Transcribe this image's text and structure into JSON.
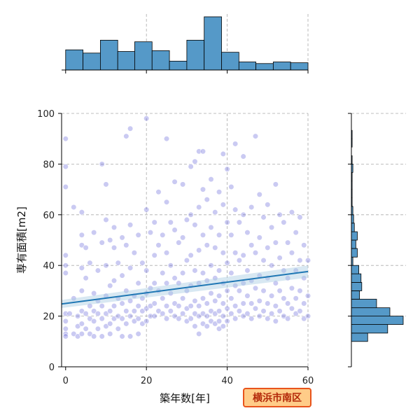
{
  "chart_data": {
    "type": "scatter",
    "title": "",
    "xlabel": "築年数[年]",
    "ylabel": "専有面積[m2]",
    "xlim": [
      -1,
      60
    ],
    "ylim": [
      0,
      100
    ],
    "x_ticks": [
      0,
      20,
      40,
      60
    ],
    "y_ticks": [
      0,
      20,
      40,
      60,
      80,
      100
    ],
    "grid": true,
    "badge": "横浜市南区",
    "colors": {
      "point": "#5b5bd6",
      "regression": "#1f77b4",
      "ci_band": "#a9cce3",
      "histogram": "#5599c8",
      "badge_fill": "#ffcc88",
      "badge_border": "#e8541c"
    },
    "regression": {
      "intercept": 25.0,
      "slope": 0.21,
      "ci_halfwidth_start": 1.6,
      "ci_halfwidth_end": 2.4
    },
    "x_histogram": {
      "bin_edges": [
        0,
        4.3,
        8.6,
        12.9,
        17.1,
        21.4,
        25.7,
        30,
        34.3,
        38.6,
        42.9,
        47.1,
        51.4,
        55.7,
        60
      ],
      "counts": [
        25,
        21,
        37,
        23,
        35,
        24,
        11,
        37,
        66,
        22,
        10,
        8,
        10,
        9
      ]
    },
    "y_histogram": {
      "bin_edges": [
        10,
        13.3,
        16.7,
        20,
        23.3,
        26.7,
        30,
        33.3,
        36.7,
        40,
        43.3,
        46.7,
        50,
        53.3,
        56.7,
        60,
        63.3,
        66.7,
        70,
        73.3,
        76.7,
        80,
        83.3,
        86.7,
        90,
        93.3
      ],
      "counts": [
        22,
        49,
        70,
        52,
        34,
        11,
        14,
        13,
        10,
        2,
        8,
        6,
        8,
        4,
        3,
        2,
        1,
        1,
        1,
        1,
        2,
        1,
        0,
        1,
        1
      ]
    },
    "points": [
      [
        0,
        90
      ],
      [
        0,
        79
      ],
      [
        0,
        71
      ],
      [
        0,
        44
      ],
      [
        0,
        40
      ],
      [
        0,
        37
      ],
      [
        0,
        21
      ],
      [
        0,
        18
      ],
      [
        0,
        15
      ],
      [
        0,
        13
      ],
      [
        0,
        12
      ],
      [
        1,
        21
      ],
      [
        2,
        63
      ],
      [
        2,
        27
      ],
      [
        2,
        13
      ],
      [
        3,
        20
      ],
      [
        3,
        16
      ],
      [
        3,
        12
      ],
      [
        4,
        61
      ],
      [
        4,
        52
      ],
      [
        4,
        48
      ],
      [
        4,
        39
      ],
      [
        4,
        30
      ],
      [
        4,
        22
      ],
      [
        4,
        17
      ],
      [
        4,
        13
      ],
      [
        5,
        47
      ],
      [
        5,
        35
      ],
      [
        5,
        21
      ],
      [
        5,
        15
      ],
      [
        6,
        41
      ],
      [
        6,
        24
      ],
      [
        6,
        19
      ],
      [
        6,
        13
      ],
      [
        7,
        53
      ],
      [
        7,
        29
      ],
      [
        7,
        22
      ],
      [
        7,
        18
      ],
      [
        7,
        12
      ],
      [
        8,
        38
      ],
      [
        8,
        26
      ],
      [
        8,
        21
      ],
      [
        8,
        15
      ],
      [
        9,
        80
      ],
      [
        9,
        49
      ],
      [
        9,
        24
      ],
      [
        9,
        19
      ],
      [
        9,
        12
      ],
      [
        10,
        72
      ],
      [
        10,
        58
      ],
      [
        10,
        40
      ],
      [
        10,
        28
      ],
      [
        10,
        21
      ],
      [
        10,
        16
      ],
      [
        11,
        50
      ],
      [
        11,
        32
      ],
      [
        11,
        22
      ],
      [
        11,
        17
      ],
      [
        11,
        13
      ],
      [
        12,
        55
      ],
      [
        12,
        47
      ],
      [
        12,
        34
      ],
      [
        12,
        24
      ],
      [
        12,
        19
      ],
      [
        13,
        41
      ],
      [
        13,
        27
      ],
      [
        13,
        20
      ],
      [
        13,
        15
      ],
      [
        14,
        51
      ],
      [
        14,
        36
      ],
      [
        14,
        25
      ],
      [
        14,
        19
      ],
      [
        14,
        12
      ],
      [
        15,
        91
      ],
      [
        15,
        48
      ],
      [
        15,
        30
      ],
      [
        15,
        22
      ],
      [
        15,
        17
      ],
      [
        16,
        94
      ],
      [
        16,
        56
      ],
      [
        16,
        39
      ],
      [
        16,
        26
      ],
      [
        16,
        20
      ],
      [
        16,
        12
      ],
      [
        17,
        45
      ],
      [
        17,
        28
      ],
      [
        17,
        22
      ],
      [
        17,
        18
      ],
      [
        18,
        52
      ],
      [
        18,
        33
      ],
      [
        18,
        24
      ],
      [
        18,
        19
      ],
      [
        18,
        13
      ],
      [
        19,
        41
      ],
      [
        19,
        27
      ],
      [
        19,
        22
      ],
      [
        19,
        17
      ],
      [
        20,
        98
      ],
      [
        20,
        62
      ],
      [
        20,
        38
      ],
      [
        20,
        29
      ],
      [
        20,
        23
      ],
      [
        20,
        18
      ],
      [
        21,
        53
      ],
      [
        21,
        31
      ],
      [
        21,
        24
      ],
      [
        21,
        20
      ],
      [
        22,
        57
      ],
      [
        22,
        44
      ],
      [
        22,
        33
      ],
      [
        22,
        25
      ],
      [
        22,
        20
      ],
      [
        23,
        69
      ],
      [
        23,
        48
      ],
      [
        23,
        30
      ],
      [
        23,
        22
      ],
      [
        24,
        52
      ],
      [
        24,
        37
      ],
      [
        24,
        27
      ],
      [
        24,
        21
      ],
      [
        25,
        90
      ],
      [
        25,
        65
      ],
      [
        25,
        45
      ],
      [
        25,
        33
      ],
      [
        25,
        24
      ],
      [
        25,
        19
      ],
      [
        26,
        57
      ],
      [
        26,
        40
      ],
      [
        26,
        29
      ],
      [
        26,
        22
      ],
      [
        27,
        73
      ],
      [
        27,
        54
      ],
      [
        27,
        35
      ],
      [
        27,
        25
      ],
      [
        27,
        20
      ],
      [
        28,
        49
      ],
      [
        28,
        33
      ],
      [
        28,
        24
      ],
      [
        28,
        19
      ],
      [
        29,
        72
      ],
      [
        29,
        51
      ],
      [
        29,
        37
      ],
      [
        29,
        27
      ],
      [
        29,
        21
      ],
      [
        30,
        58
      ],
      [
        30,
        42
      ],
      [
        30,
        30
      ],
      [
        30,
        23
      ],
      [
        30,
        18
      ],
      [
        31,
        79
      ],
      [
        31,
        60
      ],
      [
        31,
        44
      ],
      [
        31,
        32
      ],
      [
        31,
        24
      ],
      [
        31,
        19
      ],
      [
        32,
        81
      ],
      [
        32,
        56
      ],
      [
        32,
        38
      ],
      [
        32,
        26
      ],
      [
        32,
        21
      ],
      [
        32,
        16
      ],
      [
        33,
        85
      ],
      [
        33,
        63
      ],
      [
        33,
        46
      ],
      [
        33,
        33
      ],
      [
        33,
        24
      ],
      [
        33,
        20
      ],
      [
        33,
        13
      ],
      [
        34,
        85
      ],
      [
        34,
        70
      ],
      [
        34,
        52
      ],
      [
        34,
        37
      ],
      [
        34,
        27
      ],
      [
        34,
        21
      ],
      [
        34,
        17
      ],
      [
        35,
        66
      ],
      [
        35,
        48
      ],
      [
        35,
        34
      ],
      [
        35,
        25
      ],
      [
        35,
        20
      ],
      [
        35,
        16
      ],
      [
        36,
        74
      ],
      [
        36,
        55
      ],
      [
        36,
        40
      ],
      [
        36,
        29
      ],
      [
        36,
        22
      ],
      [
        36,
        18
      ],
      [
        37,
        61
      ],
      [
        37,
        47
      ],
      [
        37,
        35
      ],
      [
        37,
        26
      ],
      [
        37,
        21
      ],
      [
        37,
        17
      ],
      [
        38,
        69
      ],
      [
        38,
        52
      ],
      [
        38,
        38
      ],
      [
        38,
        28
      ],
      [
        38,
        22
      ],
      [
        38,
        18
      ],
      [
        38,
        15
      ],
      [
        39,
        84
      ],
      [
        39,
        64
      ],
      [
        39,
        45
      ],
      [
        39,
        33
      ],
      [
        39,
        25
      ],
      [
        39,
        20
      ],
      [
        39,
        16
      ],
      [
        40,
        78
      ],
      [
        40,
        57
      ],
      [
        40,
        41
      ],
      [
        40,
        30
      ],
      [
        40,
        23
      ],
      [
        40,
        18
      ],
      [
        41,
        71
      ],
      [
        41,
        52
      ],
      [
        41,
        37
      ],
      [
        41,
        27
      ],
      [
        41,
        21
      ],
      [
        42,
        88
      ],
      [
        42,
        62
      ],
      [
        42,
        45
      ],
      [
        42,
        32
      ],
      [
        42,
        24
      ],
      [
        42,
        19
      ],
      [
        43,
        57
      ],
      [
        43,
        42
      ],
      [
        43,
        30
      ],
      [
        43,
        22
      ],
      [
        44,
        83
      ],
      [
        44,
        60
      ],
      [
        44,
        44
      ],
      [
        44,
        33
      ],
      [
        44,
        25
      ],
      [
        44,
        20
      ],
      [
        45,
        53
      ],
      [
        45,
        38
      ],
      [
        45,
        28
      ],
      [
        45,
        21
      ],
      [
        46,
        63
      ],
      [
        46,
        48
      ],
      [
        46,
        34
      ],
      [
        46,
        25
      ],
      [
        46,
        19
      ],
      [
        47,
        91
      ],
      [
        47,
        45
      ],
      [
        47,
        31
      ],
      [
        47,
        23
      ],
      [
        48,
        68
      ],
      [
        48,
        51
      ],
      [
        48,
        36
      ],
      [
        48,
        26
      ],
      [
        48,
        20
      ],
      [
        49,
        59
      ],
      [
        49,
        42
      ],
      [
        49,
        30
      ],
      [
        49,
        22
      ],
      [
        50,
        64
      ],
      [
        50,
        47
      ],
      [
        50,
        35
      ],
      [
        50,
        25
      ],
      [
        50,
        19
      ],
      [
        51,
        55
      ],
      [
        51,
        40
      ],
      [
        51,
        28
      ],
      [
        51,
        21
      ],
      [
        52,
        72
      ],
      [
        52,
        49
      ],
      [
        52,
        33
      ],
      [
        52,
        24
      ],
      [
        52,
        18
      ],
      [
        53,
        60
      ],
      [
        53,
        43
      ],
      [
        53,
        30
      ],
      [
        53,
        22
      ],
      [
        54,
        57
      ],
      [
        54,
        38
      ],
      [
        54,
        27
      ],
      [
        54,
        20
      ],
      [
        55,
        49
      ],
      [
        55,
        35
      ],
      [
        55,
        25
      ],
      [
        55,
        19
      ],
      [
        56,
        61
      ],
      [
        56,
        45
      ],
      [
        56,
        31
      ],
      [
        56,
        23
      ],
      [
        57,
        53
      ],
      [
        57,
        38
      ],
      [
        57,
        27
      ],
      [
        57,
        21
      ],
      [
        58,
        59
      ],
      [
        58,
        42
      ],
      [
        58,
        30
      ],
      [
        58,
        22
      ],
      [
        59,
        48
      ],
      [
        59,
        35
      ],
      [
        59,
        25
      ],
      [
        59,
        19
      ],
      [
        60,
        42
      ],
      [
        60,
        28
      ],
      [
        60,
        20
      ]
    ]
  }
}
